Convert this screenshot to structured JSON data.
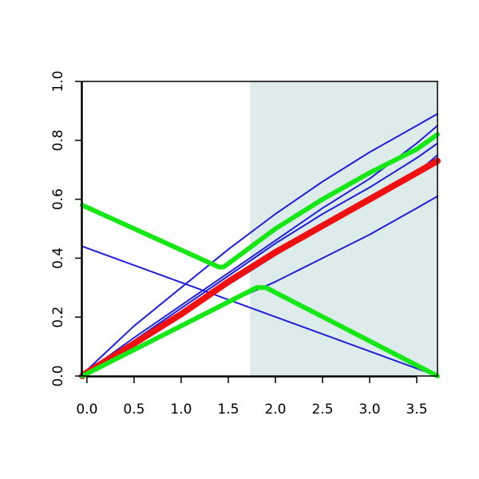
{
  "chart_data": {
    "type": "line",
    "title": "",
    "xlabel": "",
    "ylabel": "",
    "xlim": [
      -0.05,
      3.72
    ],
    "ylim": [
      0,
      1
    ],
    "x_ticks": [
      0.0,
      0.5,
      1.0,
      1.5,
      2.0,
      2.5,
      3.0,
      3.5
    ],
    "x_tick_labels": [
      "0.0",
      "0.5",
      "1.0",
      "1.5",
      "2.0",
      "2.5",
      "3.0",
      "3.5"
    ],
    "y_ticks": [
      0.0,
      0.2,
      0.4,
      0.6,
      0.8,
      1.0
    ],
    "y_tick_labels": [
      "0.0",
      "0.2",
      "0.4",
      "0.6",
      "0.8",
      "1.0"
    ],
    "grid": false,
    "legend": "none",
    "shaded_region": {
      "x_from": 1.73,
      "x_to": 3.72,
      "color": "#deebeb"
    },
    "series": [
      {
        "color": "#1f1fd6",
        "width": 2,
        "x": [
          -0.05,
          0.0,
          0.5,
          1.0,
          1.5,
          2.0,
          2.5,
          3.0,
          3.5,
          3.72
        ],
        "y": [
          0.0,
          0.02,
          0.17,
          0.3,
          0.43,
          0.55,
          0.66,
          0.76,
          0.85,
          0.89
        ]
      },
      {
        "color": "#1f1fd6",
        "width": 2,
        "x": [
          -0.05,
          0.0,
          0.5,
          1.0,
          1.5,
          2.0,
          2.5,
          3.0,
          3.5,
          3.72
        ],
        "y": [
          0.0,
          0.015,
          0.13,
          0.24,
          0.35,
          0.46,
          0.57,
          0.67,
          0.79,
          0.85
        ]
      },
      {
        "color": "#1f1fd6",
        "width": 2,
        "x": [
          -0.05,
          0.0,
          0.5,
          1.0,
          1.5,
          2.0,
          2.5,
          3.0,
          3.5,
          3.72
        ],
        "y": [
          0.0,
          0.013,
          0.12,
          0.23,
          0.34,
          0.45,
          0.55,
          0.64,
          0.74,
          0.79
        ]
      },
      {
        "color": "#1f1fd6",
        "width": 2,
        "x": [
          -0.05,
          0.0,
          0.5,
          1.0,
          1.5,
          2.0,
          2.5,
          3.0,
          3.5,
          3.72
        ],
        "y": [
          0.0,
          0.012,
          0.11,
          0.21,
          0.31,
          0.41,
          0.51,
          0.6,
          0.69,
          0.75
        ]
      },
      {
        "color": "#1f1fd6",
        "width": 2,
        "x": [
          -0.05,
          0.0,
          0.5,
          1.0,
          1.5,
          2.0,
          2.5,
          3.0,
          3.5,
          3.72
        ],
        "y": [
          0.0,
          0.01,
          0.09,
          0.17,
          0.25,
          0.32,
          0.4,
          0.48,
          0.57,
          0.61
        ]
      },
      {
        "color": "#1f1fd6",
        "width": 2,
        "x": [
          -0.05,
          3.72
        ],
        "y": [
          0.44,
          0.0
        ]
      },
      {
        "color": "#ee1111",
        "width": 8,
        "x": [
          -0.05,
          0.0,
          0.5,
          1.0,
          1.5,
          2.0,
          2.5,
          3.0,
          3.5,
          3.72
        ],
        "y": [
          0.0,
          0.012,
          0.11,
          0.21,
          0.32,
          0.42,
          0.51,
          0.6,
          0.69,
          0.73
        ]
      },
      {
        "color": "#19e619",
        "width": 6,
        "x": [
          -0.05,
          1.4,
          1.45,
          2.0,
          2.5,
          3.0,
          3.5,
          3.72
        ],
        "y": [
          0.58,
          0.37,
          0.37,
          0.5,
          0.6,
          0.69,
          0.77,
          0.82
        ]
      },
      {
        "color": "#19e619",
        "width": 6,
        "x": [
          -0.05,
          1.8,
          1.9,
          3.72
        ],
        "y": [
          0.0,
          0.3,
          0.3,
          0.0
        ]
      }
    ]
  }
}
